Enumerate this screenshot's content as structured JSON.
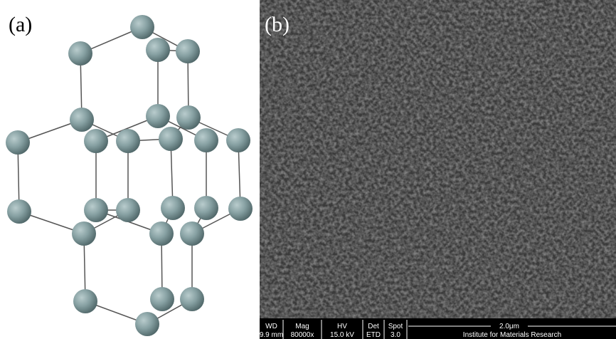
{
  "panels": {
    "a": {
      "label": "(a)"
    },
    "b": {
      "label": "(b)"
    }
  },
  "sem_bar": {
    "headers": [
      "WD",
      "Mag",
      "HV",
      "Det",
      "Spot"
    ],
    "values": [
      "9.9 mm",
      "80000x",
      "15.0 kV",
      "ETD",
      "3.0"
    ],
    "scale": "2.0μm",
    "institute": "Institute for Materials Research"
  }
}
